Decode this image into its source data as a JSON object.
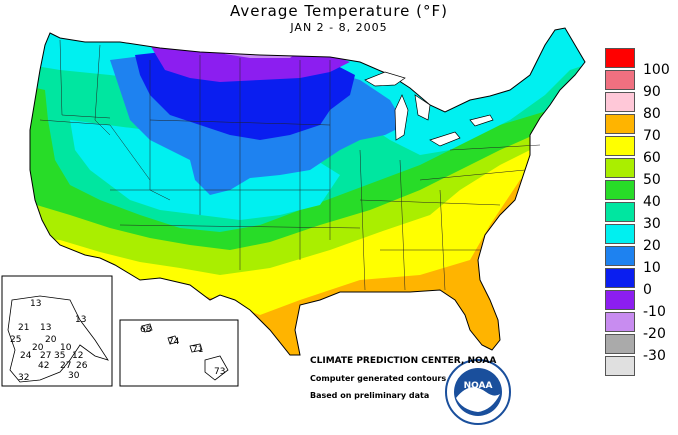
{
  "title": "Average Temperature (°F)",
  "date_range": "JAN 2 - 8, 2005",
  "legend": {
    "bins": [
      {
        "label": "100",
        "color": "#ff0000"
      },
      {
        "label": "90",
        "color": "#f07080"
      },
      {
        "label": "80",
        "color": "#ffc8d8"
      },
      {
        "label": "70",
        "color": "#ffb400"
      },
      {
        "label": "60",
        "color": "#ffff00"
      },
      {
        "label": "50",
        "color": "#aaee00"
      },
      {
        "label": "40",
        "color": "#28dc28"
      },
      {
        "label": "30",
        "color": "#00e6a0"
      },
      {
        "label": "20",
        "color": "#00f0f0"
      },
      {
        "label": "10",
        "color": "#1e82f0"
      },
      {
        "label": "0",
        "color": "#0a1ef0"
      },
      {
        "label": "-10",
        "color": "#8c1ef0"
      },
      {
        "label": "-20",
        "color": "#c88cf0"
      },
      {
        "label": "-30",
        "color": "#aaaaaa"
      },
      {
        "label": "",
        "color": "#e0e0e0"
      }
    ]
  },
  "credits": {
    "line1": "CLIMATE PREDICTION CENTER, NOAA",
    "line2": "Computer generated contours",
    "line3": "Based on preliminary data"
  },
  "logo_text": "NOAA",
  "alaska_values": [
    "13",
    "21",
    "13",
    "13",
    "20",
    "25",
    "10",
    "20",
    "24",
    "27",
    "35",
    "12",
    "42",
    "27",
    "26",
    "32",
    "30"
  ],
  "hawaii_values": [
    "68",
    "74",
    "71",
    "73"
  ]
}
